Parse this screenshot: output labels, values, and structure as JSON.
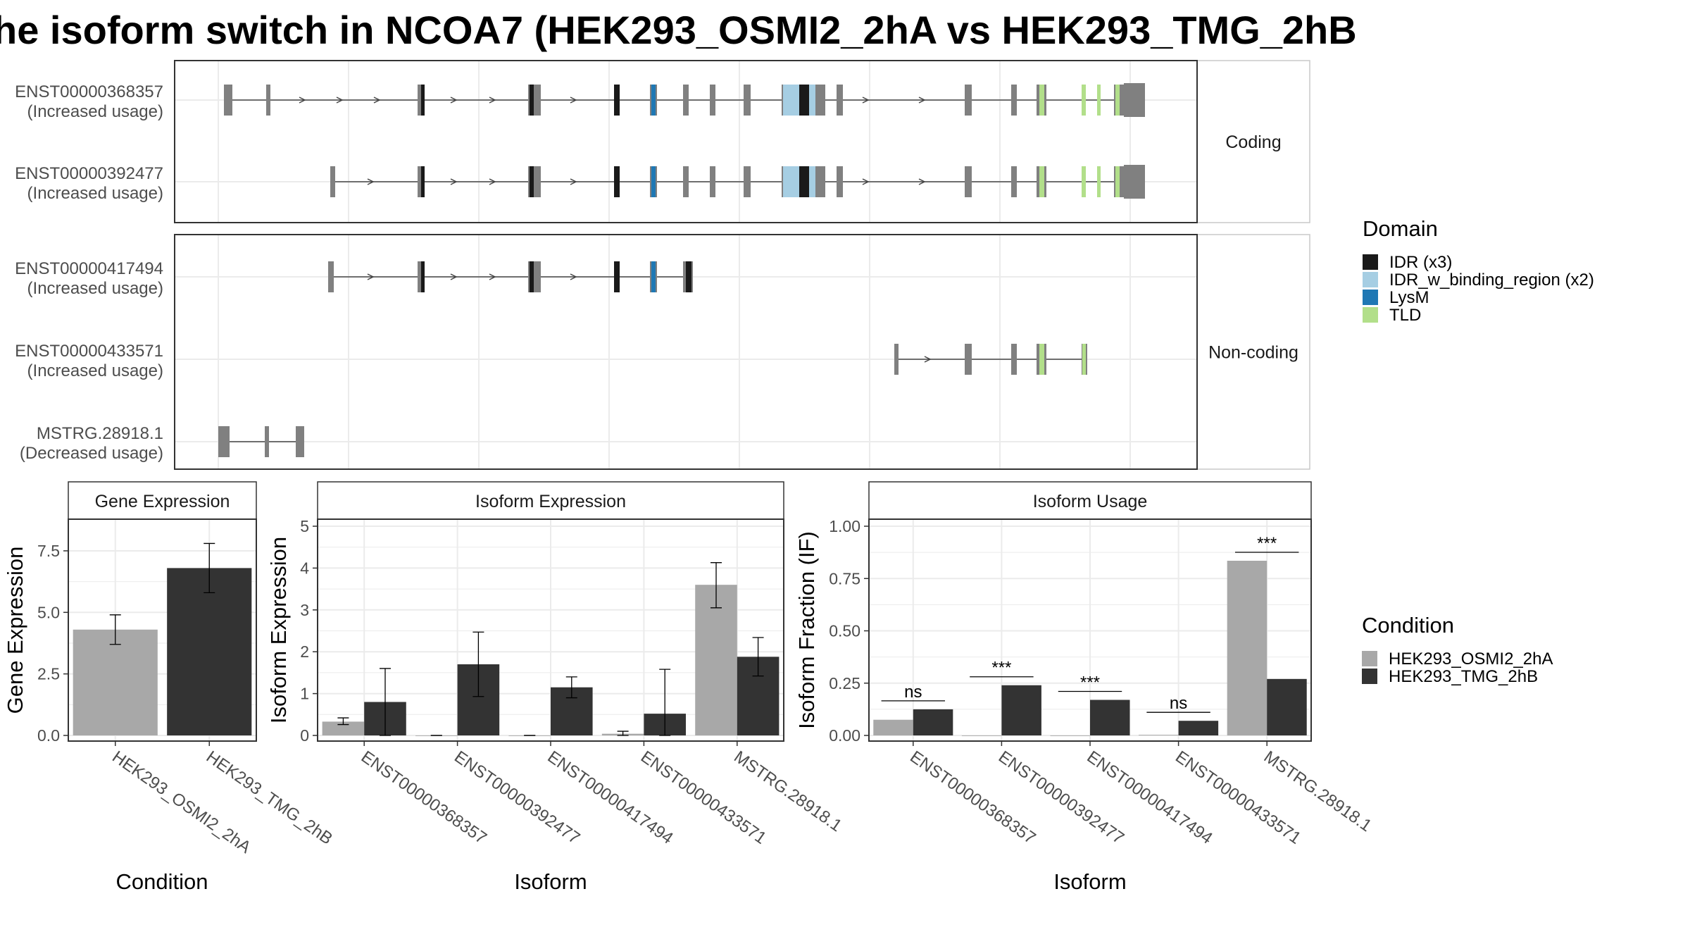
{
  "title": "he isoform switch in NCOA7 (HEK293_OSMI2_2hA vs HEK293_TMG_2hB",
  "colors": {
    "exon": "#808080",
    "IDR": "#1a1a1a",
    "IDR_w_binding_region": "#a6cee3",
    "LysM": "#1f78b4",
    "TLD": "#b2df8a",
    "cond_a": "#a8a8a8",
    "cond_b": "#333333"
  },
  "structure": {
    "panels": [
      {
        "label": "Coding",
        "tracks": [
          {
            "id": "ENST00000368357",
            "note": "(Increased usage)"
          },
          {
            "id": "ENST00000392477",
            "note": "(Increased usage)"
          }
        ]
      },
      {
        "label": "Non-coding",
        "tracks": [
          {
            "id": "ENST00000417494",
            "note": "(Increased usage)"
          },
          {
            "id": "ENST00000433571",
            "note": "(Increased usage)"
          },
          {
            "id": "MSTRG.28918.1",
            "note": "(Decreased usage)"
          }
        ]
      }
    ],
    "domain_legend": {
      "title": "Domain",
      "entries": [
        {
          "label": "IDR (x3)",
          "color": "#1a1a1a"
        },
        {
          "label": "IDR_w_binding_region (x2)",
          "color": "#a6cee3"
        },
        {
          "label": "LysM",
          "color": "#1f78b4"
        },
        {
          "label": "TLD",
          "color": "#b2df8a"
        }
      ]
    }
  },
  "condition_legend": {
    "title": "Condition",
    "entries": [
      {
        "label": "HEK293_OSMI2_2hA",
        "color": "#a8a8a8"
      },
      {
        "label": "HEK293_TMG_2hB",
        "color": "#333333"
      }
    ]
  },
  "chart_data": [
    {
      "type": "bar",
      "title": "Gene Expression",
      "xlabel": "Condition",
      "ylabel": "Gene Expression",
      "categories": [
        "HEK293_OSMI2_2hA",
        "HEK293_TMG_2hB"
      ],
      "values": [
        4.3,
        6.8
      ],
      "error_low": [
        3.7,
        5.8
      ],
      "error_high": [
        4.9,
        7.8
      ],
      "ylim": [
        0,
        8.5
      ],
      "yticks": [
        "0.0",
        "2.5",
        "5.0",
        "7.5"
      ]
    },
    {
      "type": "bar",
      "title": "Isoform Expression",
      "xlabel": "Isoform",
      "ylabel": "Isoform Expression",
      "categories": [
        "ENST00000368357",
        "ENST00000392477",
        "ENST00000417494",
        "ENST00000433571",
        "MSTRG.28918.1"
      ],
      "series": [
        {
          "name": "HEK293_OSMI2_2hA",
          "values": [
            0.33,
            0.0,
            0.0,
            0.04,
            3.6
          ],
          "error_low": [
            0.26,
            0.0,
            0.0,
            0.0,
            3.05
          ],
          "error_high": [
            0.42,
            0.0,
            0.0,
            0.1,
            4.13
          ]
        },
        {
          "name": "HEK293_TMG_2hB",
          "values": [
            0.8,
            1.7,
            1.15,
            0.52,
            1.88
          ],
          "error_low": [
            0.0,
            0.93,
            0.9,
            0.0,
            1.42
          ],
          "error_high": [
            1.6,
            2.47,
            1.4,
            1.58,
            2.34
          ]
        }
      ],
      "ylim": [
        0,
        5
      ],
      "yticks": [
        "0",
        "1",
        "2",
        "3",
        "4",
        "5"
      ]
    },
    {
      "type": "bar",
      "title": "Isoform Usage",
      "xlabel": "Isoform",
      "ylabel": "Isoform Fraction (IF)",
      "categories": [
        "ENST00000368357",
        "ENST00000392477",
        "ENST00000417494",
        "ENST00000433571",
        "MSTRG.28918.1"
      ],
      "series": [
        {
          "name": "HEK293_OSMI2_2hA",
          "values": [
            0.075,
            0.0,
            0.0,
            0.003,
            0.835
          ]
        },
        {
          "name": "HEK293_TMG_2hB",
          "values": [
            0.125,
            0.24,
            0.17,
            0.07,
            0.27
          ]
        }
      ],
      "significance": [
        "ns",
        "***",
        "***",
        "ns",
        "***"
      ],
      "ylim": [
        0,
        1.0
      ],
      "yticks": [
        "0.00",
        "0.25",
        "0.50",
        "0.75",
        "1.00"
      ]
    }
  ]
}
